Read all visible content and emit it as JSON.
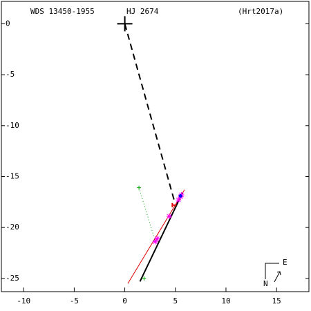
{
  "chart_data": {
    "type": "scatter",
    "title": "WDS 13450-1955",
    "subtitle": "HJ 2674",
    "source": "(Hrt2017a)",
    "compass": {
      "north": "N",
      "east": "E"
    },
    "xlim": [
      -12.2,
      18.2
    ],
    "ylim": [
      -26.3,
      2.2
    ],
    "xticks": [
      -10,
      -5,
      0,
      5,
      10,
      15
    ],
    "yticks": [
      0,
      -5,
      -10,
      -15,
      -20,
      -25
    ],
    "series": [
      {
        "color": "#000000",
        "line": "dashed",
        "x": [
          0,
          4.9
        ],
        "values": [
          0,
          -17.4
        ]
      },
      {
        "color": "#e00000",
        "line": "solid",
        "x": [
          0.3,
          5.9
        ],
        "values": [
          -25.5,
          -16.3
        ]
      },
      {
        "color": "#000000",
        "line": "solid",
        "x": [
          1.5,
          5.7
        ],
        "values": [
          -25.3,
          -16.6
        ]
      },
      {
        "color": "#00aa00",
        "line": "dotted",
        "marker": "plus",
        "x": [
          1.4,
          3.0
        ],
        "values": [
          -16.1,
          -21.3
        ]
      },
      {
        "color": "#00aa00",
        "marker": "plus",
        "x": [
          1.9
        ],
        "values": [
          -25.0
        ]
      },
      {
        "color": "#ff00ff",
        "marker": "asterisk",
        "x": [
          3.2,
          3.0,
          4.4,
          5.3,
          5.5,
          5.6
        ],
        "values": [
          -21.1,
          -21.4,
          -18.9,
          -17.3,
          -17.0,
          -16.8
        ]
      },
      {
        "color": "#e00000",
        "marker": "bracket",
        "x": [
          4.9
        ],
        "values": [
          -17.8
        ]
      },
      {
        "color": "#0000ff",
        "marker": "dot",
        "x": [
          5.5
        ],
        "values": [
          -16.9
        ]
      },
      {
        "color": "#000000",
        "marker": "plus-large",
        "x": [
          0
        ],
        "values": [
          0
        ]
      }
    ]
  }
}
